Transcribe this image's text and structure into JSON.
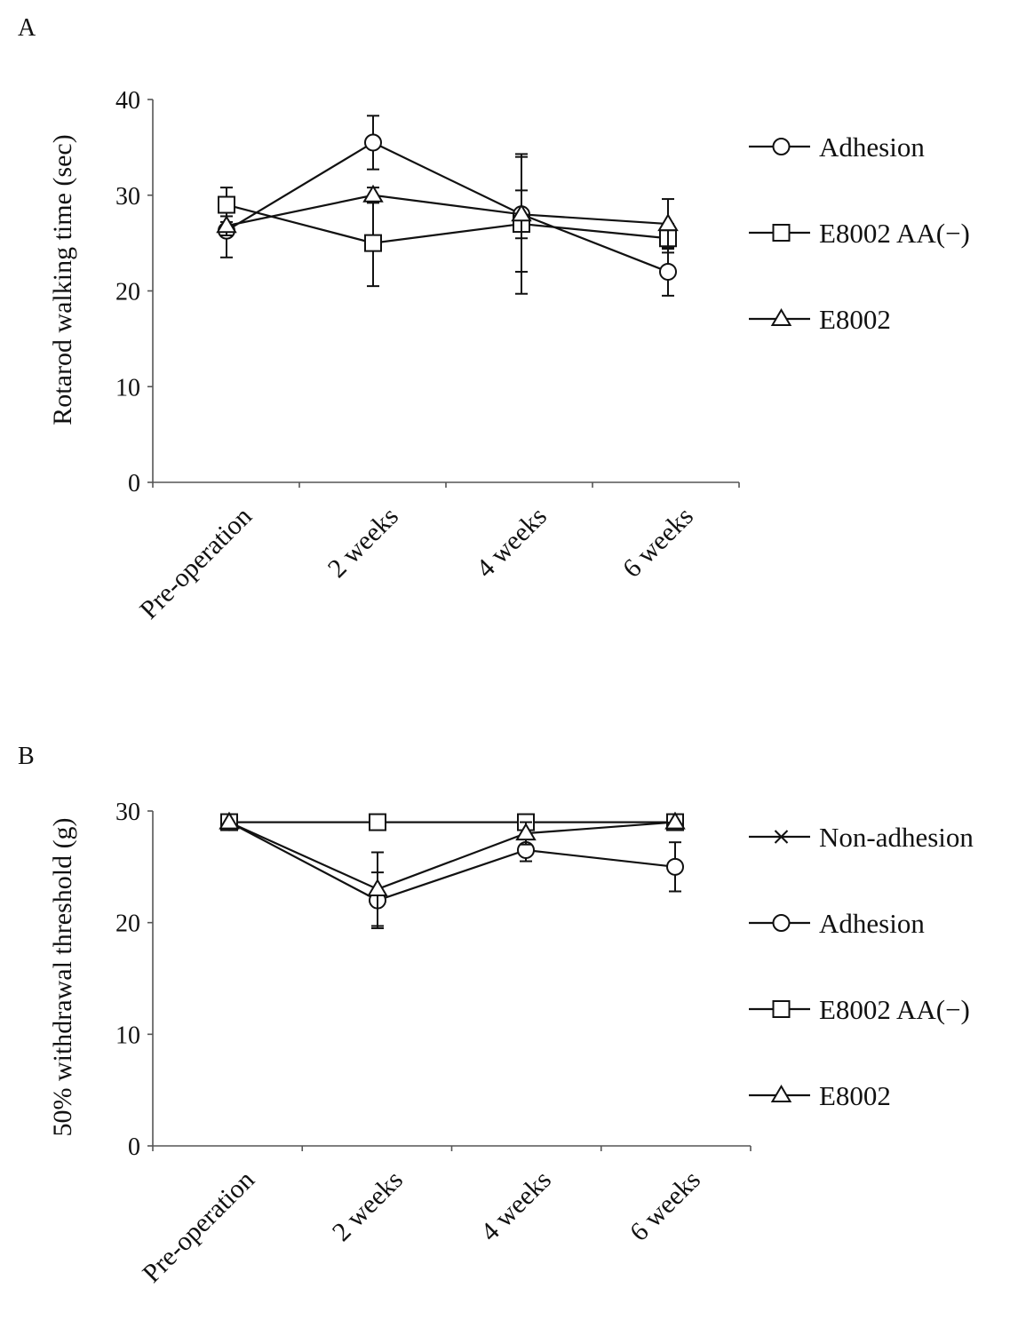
{
  "chart_data": [
    {
      "type": "line",
      "panel_label": "A",
      "title": "",
      "xlabel": "",
      "ylabel": "Rotarod walking time (sec)",
      "ylim": [
        0,
        40
      ],
      "yticks": [
        0,
        10,
        20,
        30,
        40
      ],
      "categories": [
        "Pre-operation",
        "2 weeks",
        "4 weeks",
        "6 weeks"
      ],
      "grid": false,
      "legend_position": "right",
      "series": [
        {
          "name": "Adhesion",
          "marker": "circle",
          "values": [
            26.3,
            35.5,
            28.0,
            22.0
          ],
          "errors": [
            2.8,
            2.8,
            6.0,
            2.5
          ]
        },
        {
          "name": "E8002 AA(−)",
          "marker": "square",
          "values": [
            29.0,
            25.0,
            27.0,
            25.5
          ],
          "errors": [
            1.8,
            4.5,
            7.3,
            1.5
          ]
        },
        {
          "name": "E8002",
          "marker": "triangle",
          "values": [
            26.8,
            30.0,
            28.0,
            27.0
          ],
          "errors": [
            1.0,
            0.8,
            2.5,
            2.6
          ]
        }
      ]
    },
    {
      "type": "line",
      "panel_label": "B",
      "title": "",
      "xlabel": "",
      "ylabel": "50% withdrawal threshold (g)",
      "ylim": [
        0,
        30
      ],
      "yticks": [
        0,
        10,
        20,
        30
      ],
      "categories": [
        "Pre-operation",
        "2 weeks",
        "4 weeks",
        "6 weeks"
      ],
      "grid": false,
      "legend_position": "right",
      "series": [
        {
          "name": "Non-adhesion",
          "marker": "cross",
          "values": [
            29.0,
            29.0,
            29.0,
            29.0
          ],
          "errors": [
            0,
            0,
            0,
            0
          ]
        },
        {
          "name": "Adhesion",
          "marker": "circle",
          "values": [
            29.0,
            22.0,
            26.5,
            25.0
          ],
          "errors": [
            0,
            2.5,
            1.0,
            2.2
          ]
        },
        {
          "name": "E8002 AA(−)",
          "marker": "square",
          "values": [
            29.0,
            29.0,
            29.0,
            29.0
          ],
          "errors": [
            0,
            0,
            0,
            0
          ]
        },
        {
          "name": "E8002",
          "marker": "triangle",
          "values": [
            29.0,
            23.0,
            28.0,
            29.0
          ],
          "errors": [
            0,
            3.3,
            1.0,
            0
          ]
        }
      ]
    }
  ]
}
